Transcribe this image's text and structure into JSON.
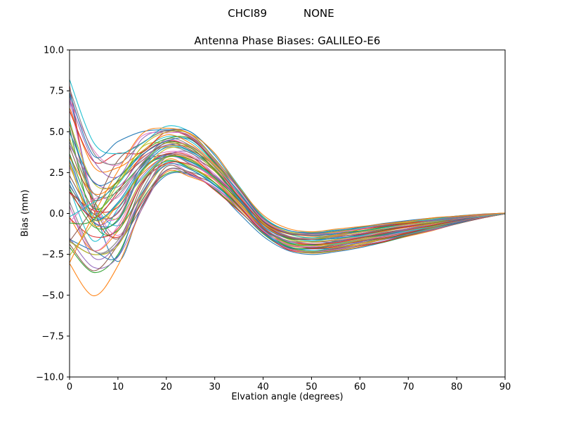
{
  "header": {
    "left": "CHCI89",
    "right": "NONE"
  },
  "chart_data": {
    "type": "line",
    "title": "Antenna Phase Biases: GALILEO-E6",
    "xlabel": "Elvation angle (degrees)",
    "ylabel": "Bias (mm)",
    "xlim": [
      0,
      90
    ],
    "ylim": [
      -10,
      10
    ],
    "grid": false,
    "legend": null,
    "xticks": [
      {
        "value": 0,
        "label": "0"
      },
      {
        "value": 10,
        "label": "10"
      },
      {
        "value": 20,
        "label": "20"
      },
      {
        "value": 30,
        "label": "30"
      },
      {
        "value": 40,
        "label": "40"
      },
      {
        "value": 50,
        "label": "50"
      },
      {
        "value": 60,
        "label": "60"
      },
      {
        "value": 70,
        "label": "70"
      },
      {
        "value": 80,
        "label": "80"
      },
      {
        "value": 90,
        "label": "90"
      }
    ],
    "yticks": [
      {
        "value": 10,
        "label": "10.0"
      },
      {
        "value": 7.5,
        "label": "7.5"
      },
      {
        "value": 5,
        "label": "5.0"
      },
      {
        "value": 2.5,
        "label": "2.5"
      },
      {
        "value": 0,
        "label": "0.0"
      },
      {
        "value": -2.5,
        "label": "−2.5"
      },
      {
        "value": -5,
        "label": "−5.0"
      },
      {
        "value": -7.5,
        "label": "−7.5"
      },
      {
        "value": -10,
        "label": "−10.0"
      }
    ],
    "x": [
      0,
      5,
      10,
      15,
      20,
      25,
      30,
      35,
      40,
      45,
      50,
      55,
      60,
      65,
      70,
      75,
      80,
      85,
      90
    ],
    "ensemble": {
      "n_lines": 52,
      "envelope_upper": [
        8.1,
        4.5,
        4.1,
        4.7,
        5.2,
        4.9,
        3.6,
        1.7,
        -0.2,
        -1.0,
        -1.1,
        -1.0,
        -0.8,
        -0.6,
        -0.45,
        -0.3,
        -0.15,
        -0.05,
        0.02
      ],
      "envelope_lower": [
        -3.0,
        -4.5,
        -3.3,
        0.4,
        2.5,
        2.3,
        1.4,
        0.1,
        -1.3,
        -2.2,
        -2.45,
        -2.3,
        -2.05,
        -1.75,
        -1.4,
        -1.05,
        -0.65,
        -0.3,
        -0.02
      ],
      "crossing_weights": [
        0,
        0.5,
        0.85,
        1,
        1,
        1,
        1,
        1,
        1,
        1,
        1,
        1,
        1,
        1,
        1,
        1,
        1,
        1,
        1
      ],
      "jitter_amplitude": [
        0.8,
        0.9,
        0.9,
        0.5,
        0.25,
        0.2,
        0.18,
        0.15,
        0.12,
        0.1,
        0.08,
        0.07,
        0.06,
        0.05,
        0.05,
        0.04,
        0.03,
        0.02,
        0.01
      ],
      "description": "Ensemble of ~52 unlabeled antenna phase bias curves: spread -3..8.1 mm at 0 deg, dip to about -4.5 mm near 5 deg, peak 2.5..5.2 mm near 20-25 deg, trough -2.4..-1.1 mm near 45-55 deg, converging to 0 mm at 90 deg"
    },
    "palette": [
      "#1f77b4",
      "#ff7f0e",
      "#2ca02c",
      "#d62728",
      "#9467bd",
      "#8c564b",
      "#e377c2",
      "#7f7f7f",
      "#bcbd22",
      "#17becf"
    ],
    "axis_color": "#000000",
    "background_color": "#ffffff"
  }
}
